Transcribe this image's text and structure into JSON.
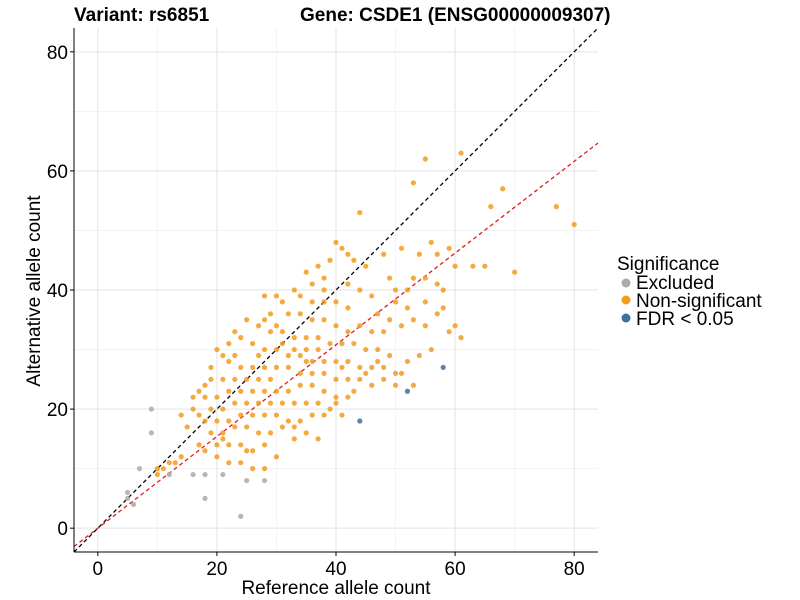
{
  "chart_data": {
    "type": "scatter",
    "title_left": "Variant: rs6851",
    "title_right": "Gene: CSDE1 (ENSG00000009307)",
    "xlabel": "Reference allele count",
    "ylabel": "Alternative allele count",
    "xlim": [
      -4,
      84
    ],
    "ylim": [
      -4,
      84
    ],
    "x_ticks": [
      0,
      20,
      40,
      60,
      80
    ],
    "y_ticks": [
      0,
      20,
      40,
      60,
      80
    ],
    "grid": true,
    "legend": {
      "title": "Significance",
      "placement": "right",
      "entries": [
        {
          "label": "Excluded",
          "color": "#aaaaaa"
        },
        {
          "label": "Non-significant",
          "color": "#f39b1d"
        },
        {
          "label": "FDR < 0.05",
          "color": "#3f6f9f"
        }
      ]
    },
    "reference_lines": [
      {
        "name": "identity",
        "slope": 1.0,
        "intercept": 0,
        "color": "#000000",
        "dash": true
      },
      {
        "name": "fit",
        "slope": 0.77,
        "intercept": 0,
        "color": "#e31a1c",
        "dash": true
      }
    ],
    "series": [
      {
        "name": "Excluded",
        "color": "#aaaaaa",
        "points": [
          [
            9,
            20
          ],
          [
            9,
            16
          ],
          [
            7,
            10
          ],
          [
            5,
            6
          ],
          [
            5,
            5
          ],
          [
            6,
            4
          ],
          [
            16,
            9
          ],
          [
            18,
            9
          ],
          [
            18,
            5
          ],
          [
            21,
            9
          ],
          [
            24,
            2
          ],
          [
            25,
            8
          ],
          [
            28,
            8
          ],
          [
            12,
            9
          ]
        ]
      },
      {
        "name": "Non-significant",
        "color": "#f39b1d",
        "points": [
          [
            61,
            63
          ],
          [
            55,
            62
          ],
          [
            53,
            58
          ],
          [
            68,
            57
          ],
          [
            66,
            54
          ],
          [
            77,
            54
          ],
          [
            80,
            51
          ],
          [
            44,
            53
          ],
          [
            56,
            48
          ],
          [
            51,
            47
          ],
          [
            57,
            46
          ],
          [
            59,
            47
          ],
          [
            60,
            44
          ],
          [
            63,
            44
          ],
          [
            65,
            44
          ],
          [
            70,
            43
          ],
          [
            54,
            46
          ],
          [
            48,
            46
          ],
          [
            40,
            48
          ],
          [
            41,
            47
          ],
          [
            42,
            46
          ],
          [
            39,
            45
          ],
          [
            43,
            45
          ],
          [
            45,
            44
          ],
          [
            37,
            44
          ],
          [
            35,
            43
          ],
          [
            38,
            42
          ],
          [
            49,
            42
          ],
          [
            50,
            40
          ],
          [
            52,
            40
          ],
          [
            53,
            42
          ],
          [
            55,
            42
          ],
          [
            57,
            41
          ],
          [
            58,
            40
          ],
          [
            61,
            32
          ],
          [
            59,
            33
          ],
          [
            60,
            34
          ],
          [
            57,
            36
          ],
          [
            55,
            38
          ],
          [
            52,
            37
          ],
          [
            50,
            38
          ],
          [
            46,
            39
          ],
          [
            44,
            40
          ],
          [
            42,
            41
          ],
          [
            38,
            40
          ],
          [
            36,
            41
          ],
          [
            33,
            40
          ],
          [
            34,
            39
          ],
          [
            30,
            39
          ],
          [
            31,
            38
          ],
          [
            28,
            39
          ],
          [
            36,
            38
          ],
          [
            38,
            38
          ],
          [
            40,
            38
          ],
          [
            42,
            37
          ],
          [
            47,
            36
          ],
          [
            49,
            35
          ],
          [
            53,
            35
          ],
          [
            58,
            37
          ],
          [
            55,
            34
          ],
          [
            51,
            34
          ],
          [
            48,
            33
          ],
          [
            46,
            33
          ],
          [
            44,
            34
          ],
          [
            42,
            33
          ],
          [
            40,
            34
          ],
          [
            38,
            35
          ],
          [
            36,
            35
          ],
          [
            34,
            36
          ],
          [
            32,
            36
          ],
          [
            30,
            34
          ],
          [
            28,
            35
          ],
          [
            29,
            33
          ],
          [
            31,
            33
          ],
          [
            33,
            32
          ],
          [
            35,
            32
          ],
          [
            37,
            32
          ],
          [
            39,
            31
          ],
          [
            41,
            31
          ],
          [
            43,
            31
          ],
          [
            45,
            30
          ],
          [
            47,
            30
          ],
          [
            49,
            29
          ],
          [
            52,
            28
          ],
          [
            54,
            29
          ],
          [
            56,
            30
          ],
          [
            53,
            24
          ],
          [
            50,
            24
          ],
          [
            51,
            26
          ],
          [
            48,
            27
          ],
          [
            46,
            27
          ],
          [
            44,
            27
          ],
          [
            42,
            28
          ],
          [
            40,
            28
          ],
          [
            38,
            28
          ],
          [
            36,
            28
          ],
          [
            34,
            29
          ],
          [
            32,
            29
          ],
          [
            30,
            30
          ],
          [
            28,
            30
          ],
          [
            26,
            31
          ],
          [
            24,
            32
          ],
          [
            22,
            31
          ],
          [
            23,
            33
          ],
          [
            25,
            35
          ],
          [
            27,
            34
          ],
          [
            29,
            36
          ],
          [
            20,
            30
          ],
          [
            21,
            29
          ],
          [
            19,
            27
          ],
          [
            22,
            28
          ],
          [
            24,
            27
          ],
          [
            26,
            27
          ],
          [
            28,
            27
          ],
          [
            30,
            27
          ],
          [
            32,
            27
          ],
          [
            34,
            26
          ],
          [
            36,
            26
          ],
          [
            38,
            26
          ],
          [
            40,
            25
          ],
          [
            42,
            25
          ],
          [
            44,
            25
          ],
          [
            46,
            24
          ],
          [
            48,
            25
          ],
          [
            50,
            26
          ],
          [
            29,
            25
          ],
          [
            27,
            25
          ],
          [
            25,
            25
          ],
          [
            23,
            25
          ],
          [
            21,
            25
          ],
          [
            19,
            25
          ],
          [
            18,
            24
          ],
          [
            17,
            23
          ],
          [
            16,
            22
          ],
          [
            18,
            22
          ],
          [
            20,
            22
          ],
          [
            22,
            23
          ],
          [
            24,
            23
          ],
          [
            26,
            23
          ],
          [
            28,
            23
          ],
          [
            30,
            23
          ],
          [
            32,
            23
          ],
          [
            34,
            24
          ],
          [
            36,
            24
          ],
          [
            38,
            23
          ],
          [
            40,
            22
          ],
          [
            42,
            22
          ],
          [
            37,
            21
          ],
          [
            35,
            21
          ],
          [
            33,
            21
          ],
          [
            31,
            21
          ],
          [
            29,
            21
          ],
          [
            27,
            21
          ],
          [
            25,
            21
          ],
          [
            23,
            21
          ],
          [
            21,
            20
          ],
          [
            19,
            20
          ],
          [
            17,
            19
          ],
          [
            16,
            20
          ],
          [
            18,
            18
          ],
          [
            20,
            18
          ],
          [
            22,
            18
          ],
          [
            24,
            19
          ],
          [
            26,
            19
          ],
          [
            28,
            19
          ],
          [
            30,
            19
          ],
          [
            32,
            18
          ],
          [
            34,
            18
          ],
          [
            36,
            19
          ],
          [
            38,
            19
          ],
          [
            40,
            21
          ],
          [
            41,
            19
          ],
          [
            19,
            16
          ],
          [
            21,
            16
          ],
          [
            23,
            17
          ],
          [
            25,
            17
          ],
          [
            27,
            16
          ],
          [
            29,
            16
          ],
          [
            31,
            17
          ],
          [
            33,
            17
          ],
          [
            35,
            16
          ],
          [
            37,
            15
          ],
          [
            20,
            14
          ],
          [
            22,
            14
          ],
          [
            24,
            14
          ],
          [
            26,
            13
          ],
          [
            28,
            14
          ],
          [
            30,
            12
          ],
          [
            18,
            13
          ],
          [
            20,
            12
          ],
          [
            22,
            11
          ],
          [
            24,
            11
          ],
          [
            26,
            10
          ],
          [
            28,
            10
          ],
          [
            21,
            15
          ],
          [
            17,
            14
          ],
          [
            15,
            17
          ],
          [
            14,
            19
          ],
          [
            14,
            12
          ],
          [
            12,
            11
          ],
          [
            13,
            11
          ],
          [
            11,
            10
          ],
          [
            10,
            10
          ],
          [
            10,
            9
          ],
          [
            25,
            13
          ],
          [
            33,
            15
          ],
          [
            43,
            23
          ],
          [
            45,
            26
          ],
          [
            47,
            28
          ],
          [
            39,
            20
          ],
          [
            33,
            30
          ],
          [
            35,
            30
          ],
          [
            31,
            31
          ],
          [
            27,
            29
          ],
          [
            23,
            29
          ],
          [
            35,
            28
          ],
          [
            37,
            30
          ],
          [
            41,
            27
          ]
        ]
      },
      {
        "name": "FDR < 0.05",
        "color": "#3f6f9f",
        "points": [
          [
            58,
            27
          ],
          [
            52,
            23
          ],
          [
            44,
            18
          ]
        ]
      }
    ]
  }
}
